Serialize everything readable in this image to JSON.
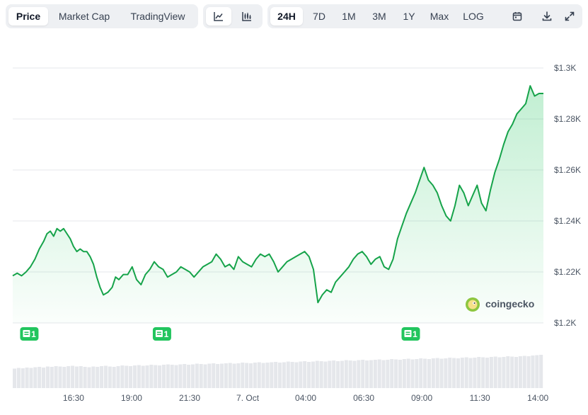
{
  "toolbar": {
    "view_tabs": [
      "Price",
      "Market Cap",
      "TradingView"
    ],
    "active_view": "Price",
    "chart_type_icons": [
      "line-chart-icon",
      "candlestick-chart-icon"
    ],
    "active_chart_type": "line-chart-icon",
    "ranges": [
      "24H",
      "7D",
      "1M",
      "3M",
      "1Y",
      "Max",
      "LOG"
    ],
    "active_range": "24H",
    "action_icons": [
      "calendar-icon",
      "download-icon",
      "fullscreen-icon"
    ]
  },
  "watermark": {
    "text": "coingecko"
  },
  "event_markers": [
    {
      "label": "1",
      "time": "14:45"
    },
    {
      "label": "1",
      "time": "20:45"
    },
    {
      "label": "1",
      "time": "08:00"
    }
  ],
  "colors": {
    "line": "#16a34a",
    "fill": "#22c55e",
    "grid": "#e5e7eb",
    "volume": "#e5e7eb",
    "marker": "#22c55e",
    "axis_text": "#4b5563"
  },
  "chart_data": {
    "type": "area",
    "x_tick_labels": [
      "16:30",
      "19:00",
      "21:30",
      "7. Oct",
      "04:00",
      "06:30",
      "09:00",
      "11:30",
      "14:00"
    ],
    "y_tick_labels": [
      "$1.3K",
      "$1.28K",
      "$1.26K",
      "$1.24K",
      "$1.22K",
      "$1.2K"
    ],
    "ylim": [
      1200,
      1300
    ],
    "x_range_hours": [
      0,
      24
    ],
    "series": [
      {
        "values": [
          [
            0.0,
            1218.5
          ],
          [
            0.2,
            1219.5
          ],
          [
            0.4,
            1218.5
          ],
          [
            0.6,
            1220
          ],
          [
            0.8,
            1222
          ],
          [
            1.0,
            1225
          ],
          [
            1.2,
            1229
          ],
          [
            1.4,
            1232
          ],
          [
            1.55,
            1235
          ],
          [
            1.7,
            1236
          ],
          [
            1.85,
            1234
          ],
          [
            2.0,
            1237
          ],
          [
            2.15,
            1236
          ],
          [
            2.3,
            1237
          ],
          [
            2.45,
            1235
          ],
          [
            2.6,
            1233
          ],
          [
            2.75,
            1230
          ],
          [
            2.9,
            1228
          ],
          [
            3.05,
            1229
          ],
          [
            3.2,
            1228
          ],
          [
            3.35,
            1228
          ],
          [
            3.5,
            1226
          ],
          [
            3.65,
            1223
          ],
          [
            3.8,
            1218
          ],
          [
            3.95,
            1214
          ],
          [
            4.1,
            1211
          ],
          [
            4.3,
            1212
          ],
          [
            4.5,
            1214
          ],
          [
            4.65,
            1218
          ],
          [
            4.8,
            1217
          ],
          [
            5.0,
            1219
          ],
          [
            5.2,
            1219
          ],
          [
            5.4,
            1222
          ],
          [
            5.6,
            1217
          ],
          [
            5.8,
            1215
          ],
          [
            6.0,
            1219
          ],
          [
            6.2,
            1221
          ],
          [
            6.4,
            1224
          ],
          [
            6.6,
            1222
          ],
          [
            6.8,
            1221
          ],
          [
            7.0,
            1218
          ],
          [
            7.2,
            1219
          ],
          [
            7.4,
            1220
          ],
          [
            7.6,
            1222
          ],
          [
            7.8,
            1221
          ],
          [
            8.0,
            1220
          ],
          [
            8.2,
            1218
          ],
          [
            8.4,
            1220
          ],
          [
            8.6,
            1222
          ],
          [
            8.8,
            1223
          ],
          [
            9.0,
            1224
          ],
          [
            9.2,
            1227
          ],
          [
            9.4,
            1225
          ],
          [
            9.6,
            1222
          ],
          [
            9.8,
            1223
          ],
          [
            10.0,
            1221
          ],
          [
            10.2,
            1226
          ],
          [
            10.4,
            1224
          ],
          [
            10.6,
            1223
          ],
          [
            10.8,
            1222
          ],
          [
            11.0,
            1225
          ],
          [
            11.2,
            1227
          ],
          [
            11.4,
            1226
          ],
          [
            11.6,
            1227
          ],
          [
            11.8,
            1224
          ],
          [
            12.0,
            1220
          ],
          [
            12.2,
            1222
          ],
          [
            12.4,
            1224
          ],
          [
            12.6,
            1225
          ],
          [
            12.8,
            1226
          ],
          [
            13.0,
            1227
          ],
          [
            13.2,
            1228
          ],
          [
            13.4,
            1226
          ],
          [
            13.6,
            1221
          ],
          [
            13.8,
            1208
          ],
          [
            14.0,
            1211
          ],
          [
            14.2,
            1213
          ],
          [
            14.4,
            1212
          ],
          [
            14.6,
            1216
          ],
          [
            14.8,
            1218
          ],
          [
            15.0,
            1220
          ],
          [
            15.2,
            1222
          ],
          [
            15.4,
            1225
          ],
          [
            15.6,
            1227
          ],
          [
            15.8,
            1228
          ],
          [
            16.0,
            1226
          ],
          [
            16.2,
            1223
          ],
          [
            16.4,
            1225
          ],
          [
            16.6,
            1226
          ],
          [
            16.8,
            1222
          ],
          [
            17.0,
            1221
          ],
          [
            17.2,
            1225
          ],
          [
            17.4,
            1233
          ],
          [
            17.6,
            1238
          ],
          [
            17.8,
            1243
          ],
          [
            18.0,
            1247
          ],
          [
            18.2,
            1251
          ],
          [
            18.4,
            1256
          ],
          [
            18.6,
            1261
          ],
          [
            18.8,
            1256
          ],
          [
            19.0,
            1254
          ],
          [
            19.2,
            1251
          ],
          [
            19.4,
            1246
          ],
          [
            19.6,
            1242
          ],
          [
            19.8,
            1240
          ],
          [
            20.0,
            1246
          ],
          [
            20.2,
            1254
          ],
          [
            20.4,
            1251
          ],
          [
            20.6,
            1246
          ],
          [
            20.8,
            1250
          ],
          [
            21.0,
            1254
          ],
          [
            21.2,
            1247
          ],
          [
            21.4,
            1244
          ],
          [
            21.6,
            1252
          ],
          [
            21.8,
            1259
          ],
          [
            22.0,
            1264
          ],
          [
            22.2,
            1270
          ],
          [
            22.4,
            1275
          ],
          [
            22.6,
            1278
          ],
          [
            22.8,
            1282
          ],
          [
            23.0,
            1284
          ],
          [
            23.2,
            1286
          ],
          [
            23.4,
            1293
          ],
          [
            23.6,
            1289
          ],
          [
            23.8,
            1290
          ],
          [
            24.0,
            1290
          ]
        ]
      }
    ],
    "volume": [
      0.55,
      0.57,
      0.56,
      0.58,
      0.57,
      0.59,
      0.6,
      0.58,
      0.61,
      0.6,
      0.62,
      0.61,
      0.6,
      0.62,
      0.63,
      0.61,
      0.62,
      0.6,
      0.59,
      0.61,
      0.6,
      0.62,
      0.63,
      0.61,
      0.6,
      0.62,
      0.64,
      0.63,
      0.62,
      0.64,
      0.65,
      0.63,
      0.64,
      0.66,
      0.65,
      0.64,
      0.66,
      0.67,
      0.66,
      0.65,
      0.67,
      0.68,
      0.66,
      0.67,
      0.69,
      0.68,
      0.67,
      0.69,
      0.7,
      0.68,
      0.69,
      0.7,
      0.71,
      0.69,
      0.7,
      0.72,
      0.71,
      0.7,
      0.72,
      0.73,
      0.71,
      0.72,
      0.73,
      0.74,
      0.72,
      0.73,
      0.75,
      0.74,
      0.73,
      0.75,
      0.76,
      0.74,
      0.75,
      0.77,
      0.76,
      0.75,
      0.77,
      0.78,
      0.76,
      0.77,
      0.79,
      0.78,
      0.77,
      0.79,
      0.8,
      0.78,
      0.79,
      0.8,
      0.81,
      0.79,
      0.8,
      0.82,
      0.81,
      0.8,
      0.82,
      0.83,
      0.81,
      0.82,
      0.84,
      0.83,
      0.82,
      0.84,
      0.85,
      0.83,
      0.84,
      0.86,
      0.85,
      0.84,
      0.86,
      0.87,
      0.85,
      0.86,
      0.88,
      0.87,
      0.86,
      0.88,
      0.89,
      0.87,
      0.88,
      0.9,
      0.89,
      0.88,
      0.9,
      0.91,
      0.9,
      0.92,
      0.93,
      0.94
    ]
  }
}
